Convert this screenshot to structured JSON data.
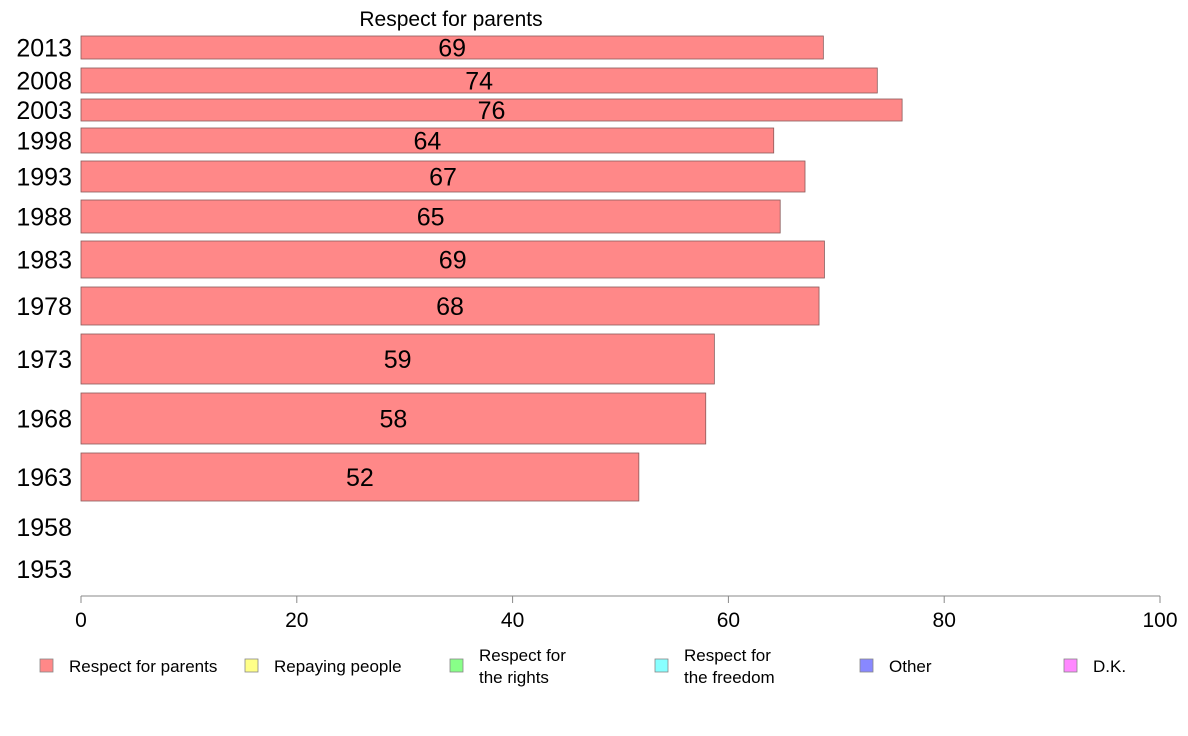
{
  "chart_data": {
    "type": "bar",
    "orientation": "horizontal",
    "title": "Respect for parents",
    "categories": [
      "2013",
      "2008",
      "2003",
      "1998",
      "1993",
      "1988",
      "1983",
      "1978",
      "1973",
      "1968",
      "1963",
      "1958",
      "1953"
    ],
    "values": [
      68.8,
      73.8,
      76.1,
      64.2,
      67.1,
      64.8,
      68.9,
      68.4,
      58.7,
      57.9,
      51.7,
      null,
      null
    ],
    "value_labels": [
      "69",
      "74",
      "76",
      "64",
      "67",
      "65",
      "69",
      "68",
      "59",
      "58",
      "52",
      "",
      ""
    ],
    "xlim": [
      0,
      100
    ],
    "x_ticks": [
      0,
      20,
      40,
      60,
      80,
      100
    ],
    "grid": false,
    "legend_position": "bottom",
    "bar_color": "#ff8888",
    "legend": [
      {
        "lines": [
          "Respect for parents"
        ],
        "color": "#ff8888"
      },
      {
        "lines": [
          "Repaying people"
        ],
        "color": "#ffff88"
      },
      {
        "lines": [
          "Respect for",
          "the rights"
        ],
        "color": "#88ff88"
      },
      {
        "lines": [
          "Respect for",
          "the freedom"
        ],
        "color": "#88ffff"
      },
      {
        "lines": [
          "Other"
        ],
        "color": "#8888ff"
      },
      {
        "lines": [
          "D.K."
        ],
        "color": "#ff88ff"
      }
    ]
  }
}
